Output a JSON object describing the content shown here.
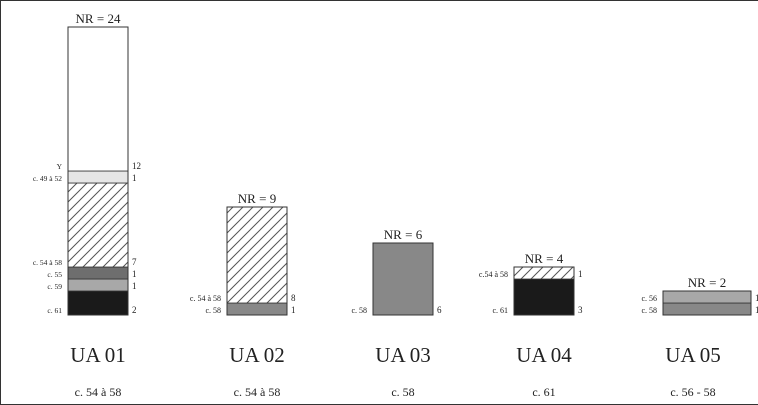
{
  "chart_data": {
    "type": "bar",
    "stacked": true,
    "unit_label": "NR",
    "columns": [
      {
        "name": "UA 01",
        "date": "c. 54 à 58",
        "total_label": "NR = 24",
        "segments": [
          {
            "label": "c. 61",
            "value": 2,
            "fill": "black"
          },
          {
            "label": "c. 59",
            "value": 1,
            "fill": "lightgray"
          },
          {
            "label": "c. 55",
            "value": 1,
            "fill": "darkgray"
          },
          {
            "label": "c. 54 à 58",
            "value": 7,
            "fill": "hatch"
          },
          {
            "label": "c. 49 à 52",
            "value": 1,
            "fill": "palegray"
          },
          {
            "label": "Y",
            "value": 12,
            "fill": "white"
          }
        ]
      },
      {
        "name": "UA 02",
        "date": "c. 54 à 58",
        "total_label": "NR = 9",
        "segments": [
          {
            "label": "c. 58",
            "value": 1,
            "fill": "midgray"
          },
          {
            "label": "c. 54 à 58",
            "value": 8,
            "fill": "hatch"
          }
        ]
      },
      {
        "name": "UA 03",
        "date": "c. 58",
        "total_label": "NR = 6",
        "segments": [
          {
            "label": "c. 58",
            "value": 6,
            "fill": "midgray"
          }
        ]
      },
      {
        "name": "UA 04",
        "date": "c. 61",
        "total_label": "NR = 4",
        "segments": [
          {
            "label": "c. 61",
            "value": 3,
            "fill": "black"
          },
          {
            "label": "c.54 à 58",
            "value": 1,
            "fill": "hatch"
          }
        ]
      },
      {
        "name": "UA 05",
        "date": "c. 56 - 58",
        "total_label": "NR = 2",
        "segments": [
          {
            "label": "c. 58",
            "value": 1,
            "fill": "midgray"
          },
          {
            "label": "c. 56",
            "value": 1,
            "fill": "lightgray"
          }
        ]
      }
    ],
    "colors": {
      "black": "#1a1a1a",
      "lightgray": "#a8a8a8",
      "darkgray": "#6e6e6e",
      "midgray": "#888888",
      "palegray": "#e6e6e6",
      "white": "#ffffff",
      "hatch": "#555555",
      "frame": "#333333"
    }
  }
}
